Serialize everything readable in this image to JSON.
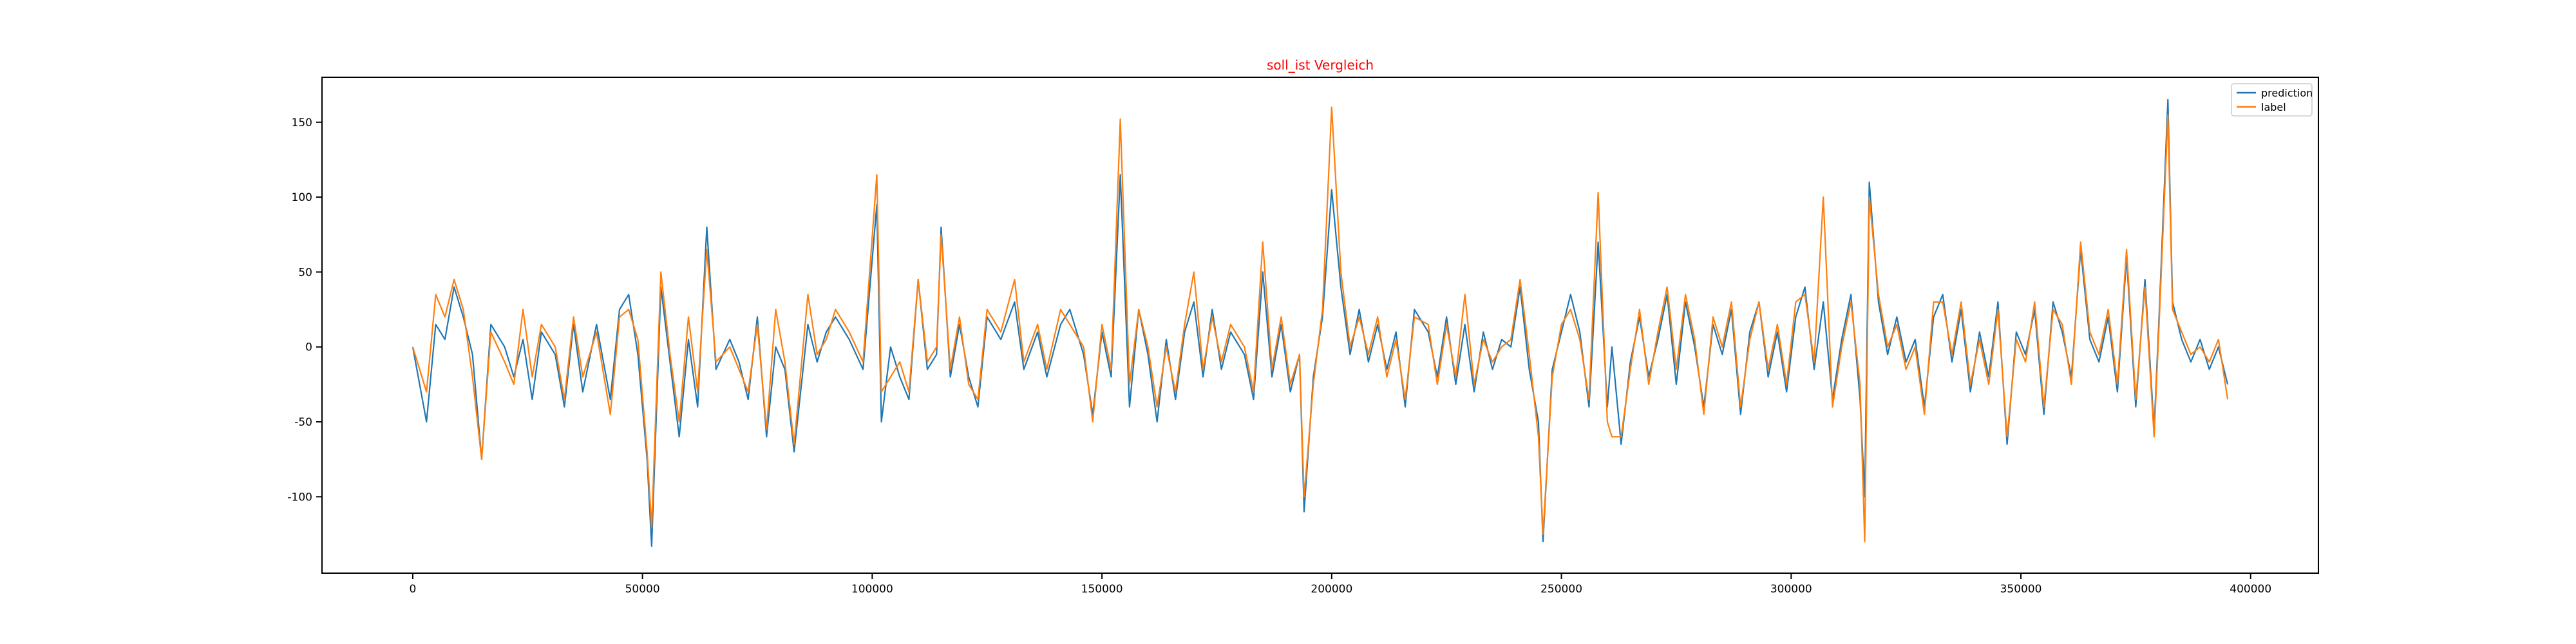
{
  "chart_data": {
    "type": "line",
    "title": "soll_ist Vergleich",
    "title_color": "#ff0000",
    "x": [
      0,
      3000,
      5000,
      7000,
      9000,
      11000,
      13000,
      15000,
      17000,
      20000,
      22000,
      24000,
      26000,
      28000,
      31000,
      33000,
      35000,
      37000,
      40000,
      43000,
      45000,
      47000,
      49000,
      51000,
      52000,
      54000,
      56000,
      58000,
      60000,
      62000,
      64000,
      66000,
      69000,
      71000,
      73000,
      75000,
      77000,
      79000,
      81000,
      83000,
      86000,
      88000,
      90000,
      92000,
      95000,
      98000,
      101000,
      102000,
      104000,
      106000,
      108000,
      110000,
      112000,
      114000,
      115000,
      117000,
      119000,
      121000,
      123000,
      125000,
      128000,
      131000,
      133000,
      136000,
      138000,
      141000,
      143000,
      146000,
      148000,
      150000,
      152000,
      154000,
      156000,
      158000,
      160000,
      162000,
      164000,
      166000,
      168000,
      170000,
      172000,
      174000,
      176000,
      178000,
      181000,
      183000,
      185000,
      187000,
      189000,
      191000,
      193000,
      194000,
      196000,
      198000,
      200000,
      202000,
      204000,
      206000,
      208000,
      210000,
      212000,
      214000,
      216000,
      218000,
      221000,
      223000,
      225000,
      227000,
      229000,
      231000,
      233000,
      235000,
      237000,
      239000,
      241000,
      243000,
      245000,
      246000,
      248000,
      250000,
      252000,
      254000,
      256000,
      258000,
      260000,
      261000,
      263000,
      265000,
      267000,
      269000,
      271000,
      273000,
      275000,
      277000,
      279000,
      281000,
      283000,
      285000,
      287000,
      289000,
      291000,
      293000,
      295000,
      297000,
      299000,
      301000,
      303000,
      305000,
      307000,
      309000,
      311000,
      313000,
      315000,
      316000,
      317000,
      319000,
      321000,
      323000,
      325000,
      327000,
      329000,
      331000,
      333000,
      335000,
      337000,
      339000,
      341000,
      343000,
      345000,
      347000,
      349000,
      351000,
      353000,
      355000,
      357000,
      359000,
      361000,
      363000,
      365000,
      367000,
      369000,
      371000,
      373000,
      375000,
      377000,
      379000,
      380000,
      382000,
      383000,
      385000,
      387000,
      389000,
      391000,
      393000,
      395000
    ],
    "series": [
      {
        "name": "prediction",
        "color": "#1f77b4",
        "values": [
          0,
          -50,
          15,
          5,
          40,
          20,
          -5,
          -75,
          15,
          0,
          -20,
          5,
          -35,
          10,
          -5,
          -40,
          15,
          -30,
          15,
          -35,
          25,
          35,
          -5,
          -75,
          -133,
          40,
          -10,
          -60,
          5,
          -40,
          80,
          -15,
          5,
          -10,
          -35,
          20,
          -60,
          0,
          -15,
          -70,
          15,
          -10,
          10,
          20,
          5,
          -15,
          95,
          -50,
          0,
          -20,
          -35,
          45,
          -15,
          -5,
          80,
          -20,
          15,
          -20,
          -40,
          20,
          5,
          30,
          -15,
          10,
          -20,
          15,
          25,
          -5,
          -45,
          10,
          -20,
          115,
          -40,
          25,
          -5,
          -50,
          5,
          -35,
          10,
          30,
          -20,
          25,
          -15,
          10,
          -5,
          -35,
          50,
          -20,
          15,
          -30,
          -5,
          -110,
          -20,
          20,
          105,
          40,
          -5,
          25,
          -10,
          15,
          -15,
          10,
          -40,
          25,
          10,
          -20,
          20,
          -25,
          15,
          -30,
          10,
          -15,
          5,
          0,
          40,
          -15,
          -50,
          -130,
          -15,
          10,
          35,
          10,
          -40,
          70,
          -40,
          0,
          -65,
          -10,
          20,
          -20,
          5,
          35,
          -25,
          30,
          0,
          -40,
          15,
          -5,
          25,
          -45,
          10,
          30,
          -20,
          10,
          -30,
          20,
          40,
          -15,
          30,
          -35,
          5,
          35,
          -35,
          -100,
          110,
          30,
          -5,
          20,
          -10,
          5,
          -40,
          20,
          35,
          -10,
          25,
          -30,
          10,
          -20,
          30,
          -65,
          10,
          -5,
          25,
          -45,
          30,
          10,
          -20,
          65,
          5,
          -10,
          20,
          -30,
          60,
          -40,
          45,
          -55,
          15,
          165,
          30,
          5,
          -10,
          5,
          -15,
          0,
          -25
        ]
      },
      {
        "name": "label",
        "color": "#ff7f0e",
        "values": [
          0,
          -30,
          35,
          20,
          45,
          25,
          -20,
          -75,
          10,
          -10,
          -25,
          25,
          -20,
          15,
          0,
          -35,
          20,
          -20,
          10,
          -45,
          20,
          25,
          5,
          -70,
          -120,
          50,
          -5,
          -50,
          20,
          -30,
          65,
          -10,
          0,
          -15,
          -30,
          15,
          -55,
          25,
          -10,
          -65,
          35,
          -5,
          5,
          25,
          10,
          -10,
          115,
          -30,
          -20,
          -10,
          -30,
          45,
          -10,
          0,
          75,
          -15,
          20,
          -25,
          -35,
          25,
          10,
          45,
          -10,
          15,
          -15,
          25,
          15,
          0,
          -50,
          15,
          -15,
          152,
          -25,
          25,
          0,
          -40,
          0,
          -30,
          15,
          50,
          -15,
          20,
          -10,
          15,
          0,
          -30,
          70,
          -15,
          20,
          -25,
          -5,
          -100,
          -25,
          25,
          160,
          50,
          0,
          20,
          -5,
          20,
          -20,
          5,
          -35,
          20,
          15,
          -25,
          15,
          -20,
          35,
          -25,
          5,
          -10,
          0,
          5,
          45,
          -5,
          -60,
          -125,
          -20,
          15,
          25,
          5,
          -35,
          103,
          -50,
          -60,
          -60,
          -15,
          25,
          -25,
          10,
          40,
          -15,
          35,
          5,
          -45,
          20,
          0,
          30,
          -40,
          5,
          30,
          -15,
          15,
          -25,
          30,
          35,
          -10,
          100,
          -40,
          0,
          30,
          -25,
          -130,
          100,
          35,
          0,
          15,
          -15,
          0,
          -45,
          30,
          30,
          -5,
          30,
          -25,
          5,
          -25,
          25,
          -60,
          5,
          -10,
          30,
          -40,
          25,
          15,
          -25,
          70,
          10,
          -5,
          25,
          -25,
          65,
          -35,
          40,
          -60,
          10,
          155,
          25,
          10,
          -5,
          0,
          -10,
          5,
          -35
        ]
      }
    ],
    "xlim": [
      -19750,
      414750
    ],
    "xticks": [
      0,
      50000,
      100000,
      150000,
      200000,
      250000,
      300000,
      350000,
      400000
    ],
    "ylim": [
      -151,
      180
    ],
    "yticks": [
      -100,
      -50,
      0,
      50,
      100,
      150
    ],
    "legend": "upper right"
  }
}
